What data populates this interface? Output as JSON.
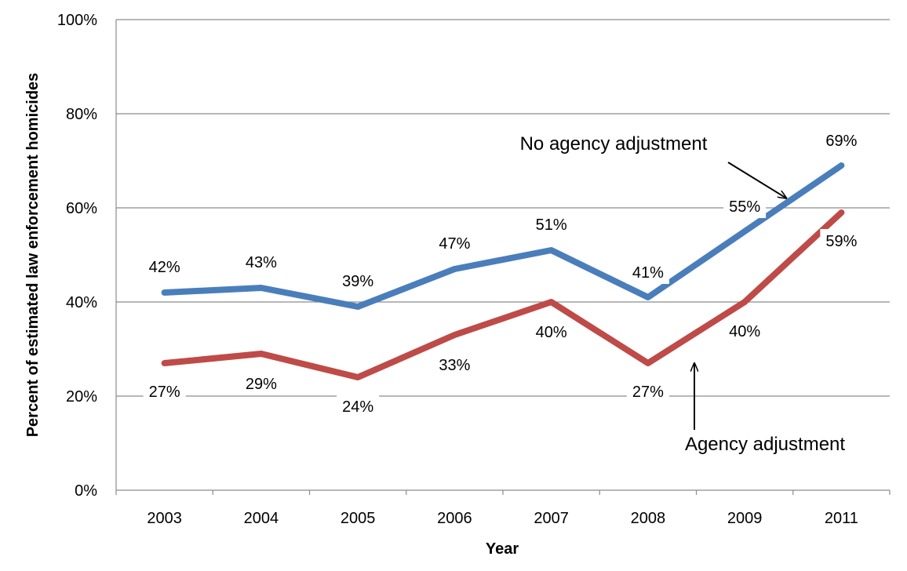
{
  "chart_data": {
    "type": "line",
    "title": "",
    "xlabel": "Year",
    "ylabel": "Percent of estimated law enforcement homicides",
    "categories": [
      "2003",
      "2004",
      "2005",
      "2006",
      "2007",
      "2008",
      "2009",
      "2011"
    ],
    "ylim": [
      0,
      100
    ],
    "yticks": [
      "0%",
      "20%",
      "40%",
      "60%",
      "80%",
      "100%"
    ],
    "grid": "horizontal",
    "legend": "none",
    "series": [
      {
        "name": "No agency adjustment",
        "color": "#4A7EBB",
        "values": [
          42,
          43,
          39,
          47,
          51,
          41,
          55,
          69
        ],
        "labels": [
          "42%",
          "43%",
          "39%",
          "47%",
          "51%",
          "41%",
          "55%",
          "69%"
        ]
      },
      {
        "name": "Agency adjustment",
        "color": "#BE4B48",
        "values": [
          27,
          29,
          24,
          33,
          40,
          27,
          40,
          59
        ],
        "labels": [
          "27%",
          "29%",
          "24%",
          "33%",
          "40%",
          "27%",
          "40%",
          "59%"
        ]
      }
    ],
    "annotations": [
      {
        "text": "No agency adjustment",
        "points_to": "No agency adjustment"
      },
      {
        "text": "Agency adjustment",
        "points_to": "Agency adjustment"
      }
    ]
  }
}
